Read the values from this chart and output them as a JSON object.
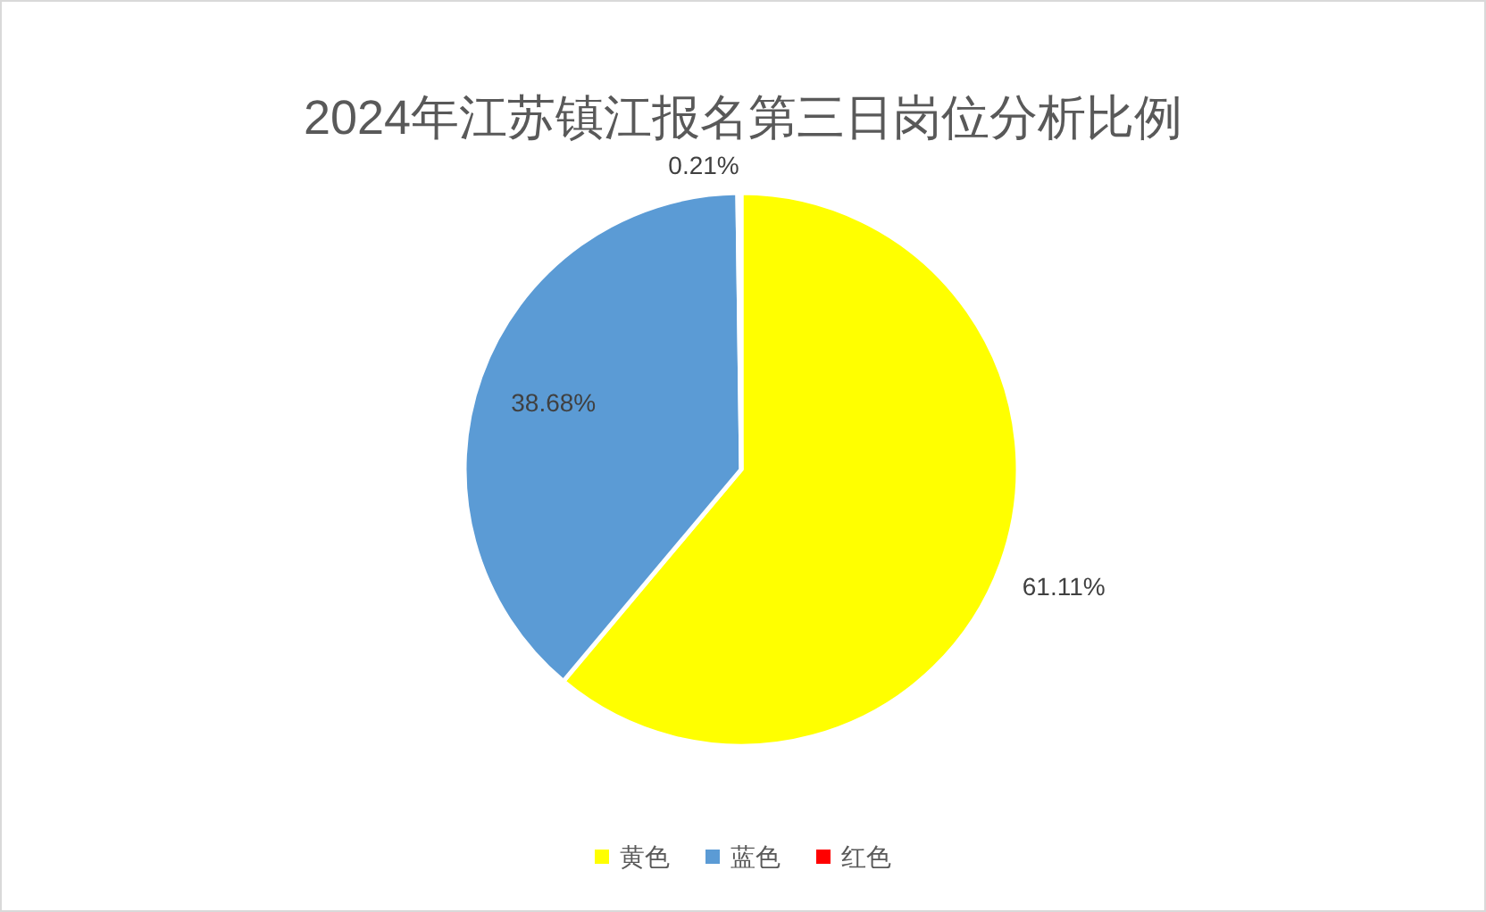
{
  "chart_data": {
    "type": "pie",
    "title": "2024年江苏镇江报名第三日岗位分析比例",
    "categories": [
      "黄色",
      "蓝色",
      "红色"
    ],
    "values": [
      61.11,
      38.68,
      0.21
    ],
    "colors": [
      "#ffff00",
      "#5b9bd5",
      "#ff0000"
    ],
    "value_labels": [
      "61.11%",
      "38.68%",
      "0.21%"
    ],
    "legend": "bottom"
  }
}
